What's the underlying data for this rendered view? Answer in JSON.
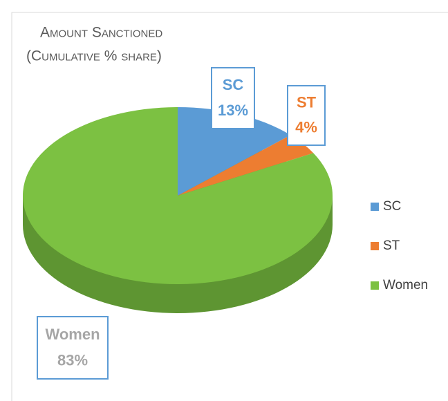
{
  "chart_data": {
    "type": "pie",
    "title": "Amount Sanctioned",
    "subtitle": "(Cumulative % share)",
    "categories": [
      "SC",
      "ST",
      "Women"
    ],
    "values": [
      13,
      4,
      83
    ],
    "value_labels": [
      "13%",
      "4%",
      "83%"
    ],
    "colors": [
      "#5b9bd5",
      "#ed7d31",
      "#7cc142"
    ],
    "label_colors": [
      "#5b9bd5",
      "#ed7d31",
      "#a6a6a6"
    ],
    "legend": "right"
  }
}
